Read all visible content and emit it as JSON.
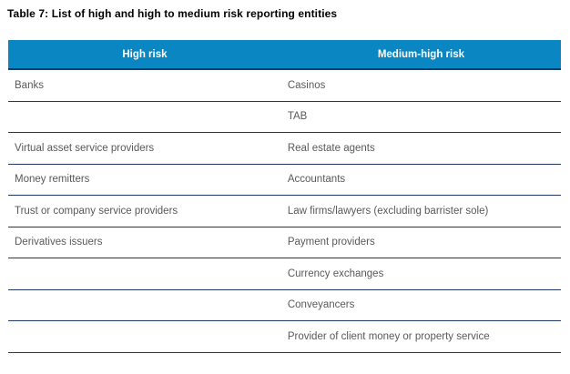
{
  "caption": "Table 7: List of high and high to medium risk reporting entities",
  "table": {
    "headers": [
      "High risk",
      "Medium-high risk"
    ],
    "rows": [
      {
        "high_risk": "Banks",
        "medium_high_risk": "Casinos"
      },
      {
        "high_risk": "",
        "medium_high_risk": "TAB"
      },
      {
        "high_risk": "Virtual asset service providers",
        "medium_high_risk": "Real estate agents"
      },
      {
        "high_risk": "Money remitters",
        "medium_high_risk": "Accountants"
      },
      {
        "high_risk": "Trust or company service providers",
        "medium_high_risk": "Law firms/lawyers (excluding barrister sole)"
      },
      {
        "high_risk": "Derivatives issuers",
        "medium_high_risk": "Payment providers"
      },
      {
        "high_risk": "",
        "medium_high_risk": "Currency exchanges"
      },
      {
        "high_risk": "",
        "medium_high_risk": "Conveyancers"
      },
      {
        "high_risk": "",
        "medium_high_risk": "Provider of client money or property service"
      }
    ]
  },
  "colors": {
    "header_background": "#0a86c2",
    "header_text": "#ffffff",
    "row_divider": "#1f3864",
    "cell_text": "#595959",
    "caption_text": "#000000"
  }
}
